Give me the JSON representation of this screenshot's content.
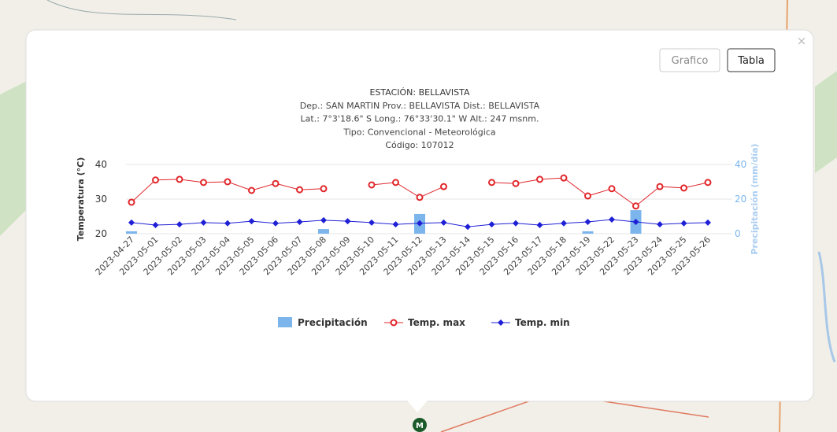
{
  "ui": {
    "buttons": [
      "Grafico",
      "Tabla"
    ],
    "close": "×",
    "marker": "M"
  },
  "chart_data": {
    "type": "combo",
    "title_lines": [
      "ESTACIÓN: BELLAVISTA",
      "Dep.: SAN MARTIN Prov.: BELLAVISTA Dist.: BELLAVISTA",
      "Lat.: 7°3'18.6\" S Long.: 76°33'30.1\" W Alt.: 247 msnm.",
      "Tipo: Convencional - Meteorológica",
      "Código: 107012"
    ],
    "ylabel": "Temperatura (°C)",
    "y2label": "Precipitación (mm/día)",
    "ylim": [
      20,
      40
    ],
    "yticks": [
      20,
      30,
      40
    ],
    "y2lim": [
      0,
      40
    ],
    "y2ticks": [
      0,
      20,
      40
    ],
    "grid": true,
    "categories": [
      "2023-04-27",
      "2023-05-01",
      "2023-05-02",
      "2023-05-03",
      "2023-05-04",
      "2023-05-05",
      "2023-05-06",
      "2023-05-07",
      "2023-05-08",
      "2023-05-09",
      "2023-05-10",
      "2023-05-11",
      "2023-05-12",
      "2023-05-13",
      "2023-05-14",
      "2023-05-15",
      "2023-05-16",
      "2023-05-17",
      "2023-05-18",
      "2023-05-19",
      "2023-05-22",
      "2023-05-23",
      "2023-05-24",
      "2023-05-25",
      "2023-05-26"
    ],
    "series": [
      {
        "name": "Precipitación",
        "type": "bar",
        "axis": "y2",
        "color": "#7cb5ec",
        "values": [
          1.4,
          0,
          0,
          0,
          0,
          0,
          0,
          0,
          2.7,
          0,
          0,
          0,
          11.4,
          0,
          0,
          0,
          0,
          0,
          0,
          1.4,
          0,
          13.6,
          0,
          0,
          0
        ]
      },
      {
        "name": "Temp. max",
        "type": "line",
        "marker": "circle",
        "color": "#e0262b",
        "values": [
          29.1,
          35.5,
          35.7,
          34.8,
          35.0,
          32.5,
          34.5,
          32.7,
          33.0,
          null,
          34.1,
          34.8,
          30.5,
          33.6,
          null,
          34.8,
          34.5,
          35.7,
          36.1,
          30.9,
          33.0,
          28.0,
          33.6,
          33.2,
          34.8
        ]
      },
      {
        "name": "Temp. min",
        "type": "line",
        "marker": "diamond",
        "color": "#1f1fd6",
        "values": [
          23.2,
          22.5,
          22.7,
          23.2,
          23.0,
          23.6,
          23.0,
          23.4,
          23.9,
          23.6,
          23.2,
          22.7,
          23.0,
          23.2,
          22.0,
          22.7,
          23.0,
          22.5,
          23.0,
          23.4,
          24.1,
          23.4,
          22.7,
          23.0,
          23.2
        ]
      }
    ]
  }
}
